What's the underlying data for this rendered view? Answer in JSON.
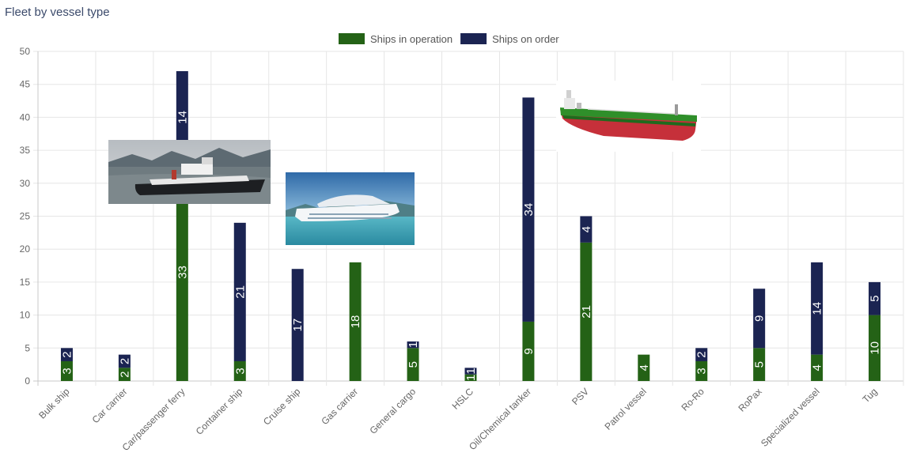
{
  "page": {
    "title": "Fleet by vessel type"
  },
  "colors": {
    "operation": "#246216",
    "order": "#1b2452",
    "grid": "#e6e6e6",
    "axis": "#c8c8c8"
  },
  "chart_data": {
    "type": "bar",
    "stacked": true,
    "title": "Fleet by vessel type",
    "categories": [
      "Bulk ship",
      "Car carrier",
      "Car/passenger ferry",
      "Container ship",
      "Cruise ship",
      "Gas carrier",
      "General cargo",
      "HSLC",
      "Oil/Chemical tanker",
      "PSV",
      "Patrol vessel",
      "Ro-Ro",
      "RoPax",
      "Specialized vessel",
      "Tug"
    ],
    "series": [
      {
        "name": "Ships in operation",
        "values": [
          3,
          2,
          33,
          3,
          0,
          18,
          5,
          1,
          9,
          21,
          4,
          3,
          5,
          4,
          10
        ]
      },
      {
        "name": "Ships on order",
        "values": [
          2,
          2,
          14,
          21,
          17,
          0,
          1,
          1,
          34,
          4,
          0,
          2,
          9,
          14,
          5
        ]
      }
    ],
    "ylim": [
      0,
      50
    ],
    "yticks": [
      0,
      5,
      10,
      15,
      20,
      25,
      30,
      35,
      40,
      45,
      50
    ],
    "legend_position": "top-center",
    "grid": true
  },
  "illustrations": [
    {
      "name": "ferry-photo",
      "depicts": "car/passenger ferry"
    },
    {
      "name": "cruise-ship-photo",
      "depicts": "cruise ship"
    },
    {
      "name": "tanker-photo",
      "depicts": "oil/chemical tanker"
    }
  ]
}
